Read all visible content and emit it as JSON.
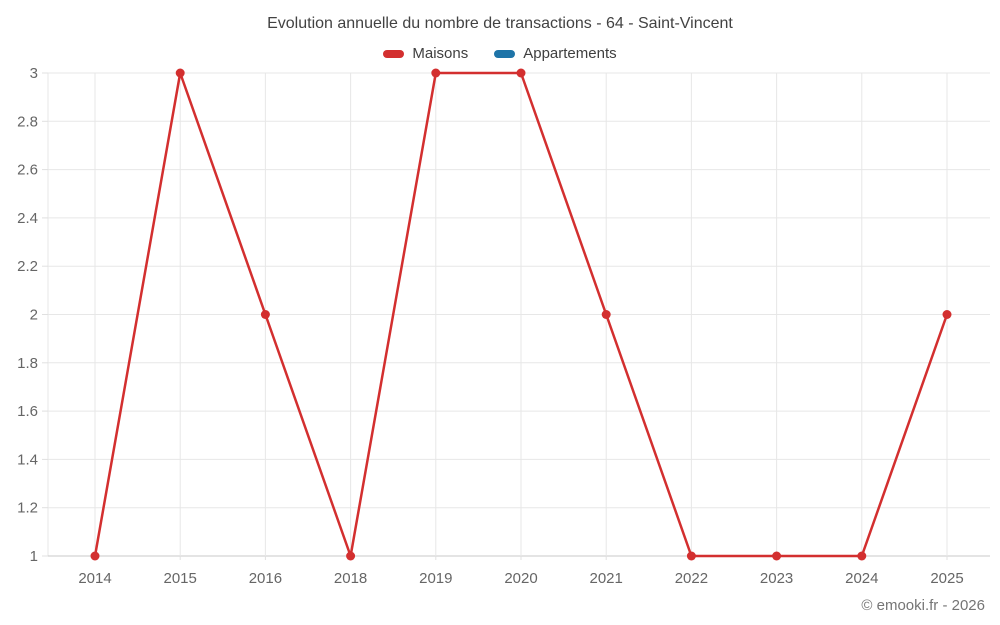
{
  "chart_data": {
    "type": "line",
    "title": "Evolution annuelle du nombre de transactions - 64 - Saint-Vincent",
    "categories": [
      "2014",
      "2015",
      "2016",
      "2018",
      "2019",
      "2020",
      "2021",
      "2022",
      "2023",
      "2024",
      "2025"
    ],
    "series": [
      {
        "name": "Maisons",
        "color": "#d32f2f",
        "values": [
          1,
          3,
          2,
          1,
          3,
          3,
          2,
          1,
          1,
          1,
          2
        ]
      },
      {
        "name": "Appartements",
        "color": "#1e74a8",
        "values": []
      }
    ],
    "xlabel": "",
    "ylabel": "",
    "ylim": [
      1,
      3
    ],
    "ytick_step": 0.2,
    "grid": true,
    "legend_position": "top",
    "marker": "circle",
    "footer": "© emooki.fr - 2026"
  }
}
